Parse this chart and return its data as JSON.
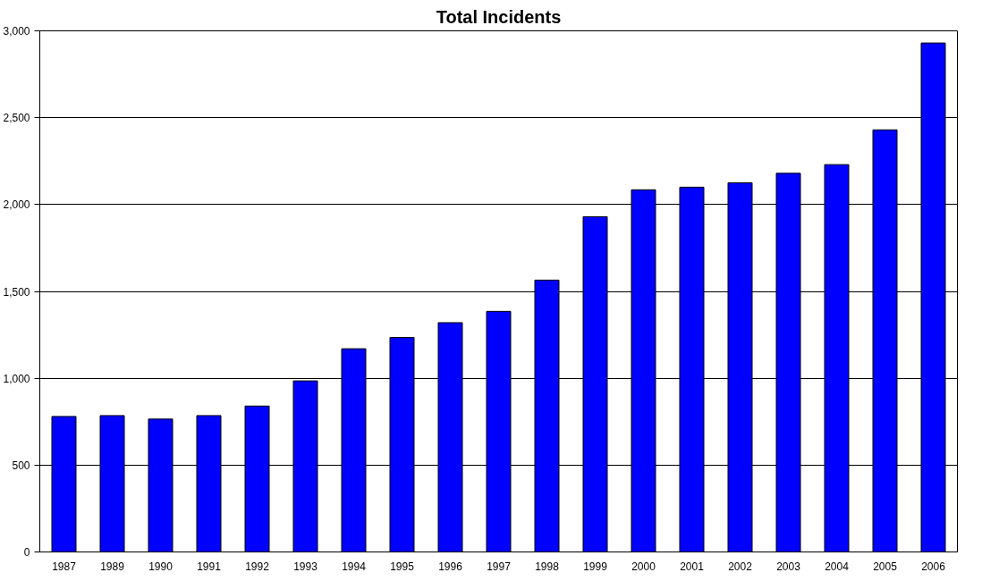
{
  "chart_data": {
    "type": "bar",
    "title": "Total Incidents",
    "categories": [
      "1987",
      "1989",
      "1990",
      "1991",
      "1992",
      "1993",
      "1994",
      "1995",
      "1996",
      "1997",
      "1998",
      "1999",
      "2000",
      "2001",
      "2002",
      "2003",
      "2004",
      "2005",
      "2006"
    ],
    "values": [
      780,
      785,
      765,
      785,
      840,
      985,
      1170,
      1235,
      1320,
      1385,
      1565,
      1930,
      2085,
      2100,
      2125,
      2180,
      2230,
      2430,
      2930
    ],
    "color": "#0000ff",
    "ylim": [
      0,
      3000
    ],
    "yticks": [
      {
        "value": 0,
        "label": "0"
      },
      {
        "value": 500,
        "label": "500"
      },
      {
        "value": 1000,
        "label": "1,000"
      },
      {
        "value": 1500,
        "label": "1,500"
      },
      {
        "value": 2000,
        "label": "2,000"
      },
      {
        "value": 2500,
        "label": "2,500"
      },
      {
        "value": 3000,
        "label": "3,000"
      }
    ],
    "grid": "y"
  }
}
